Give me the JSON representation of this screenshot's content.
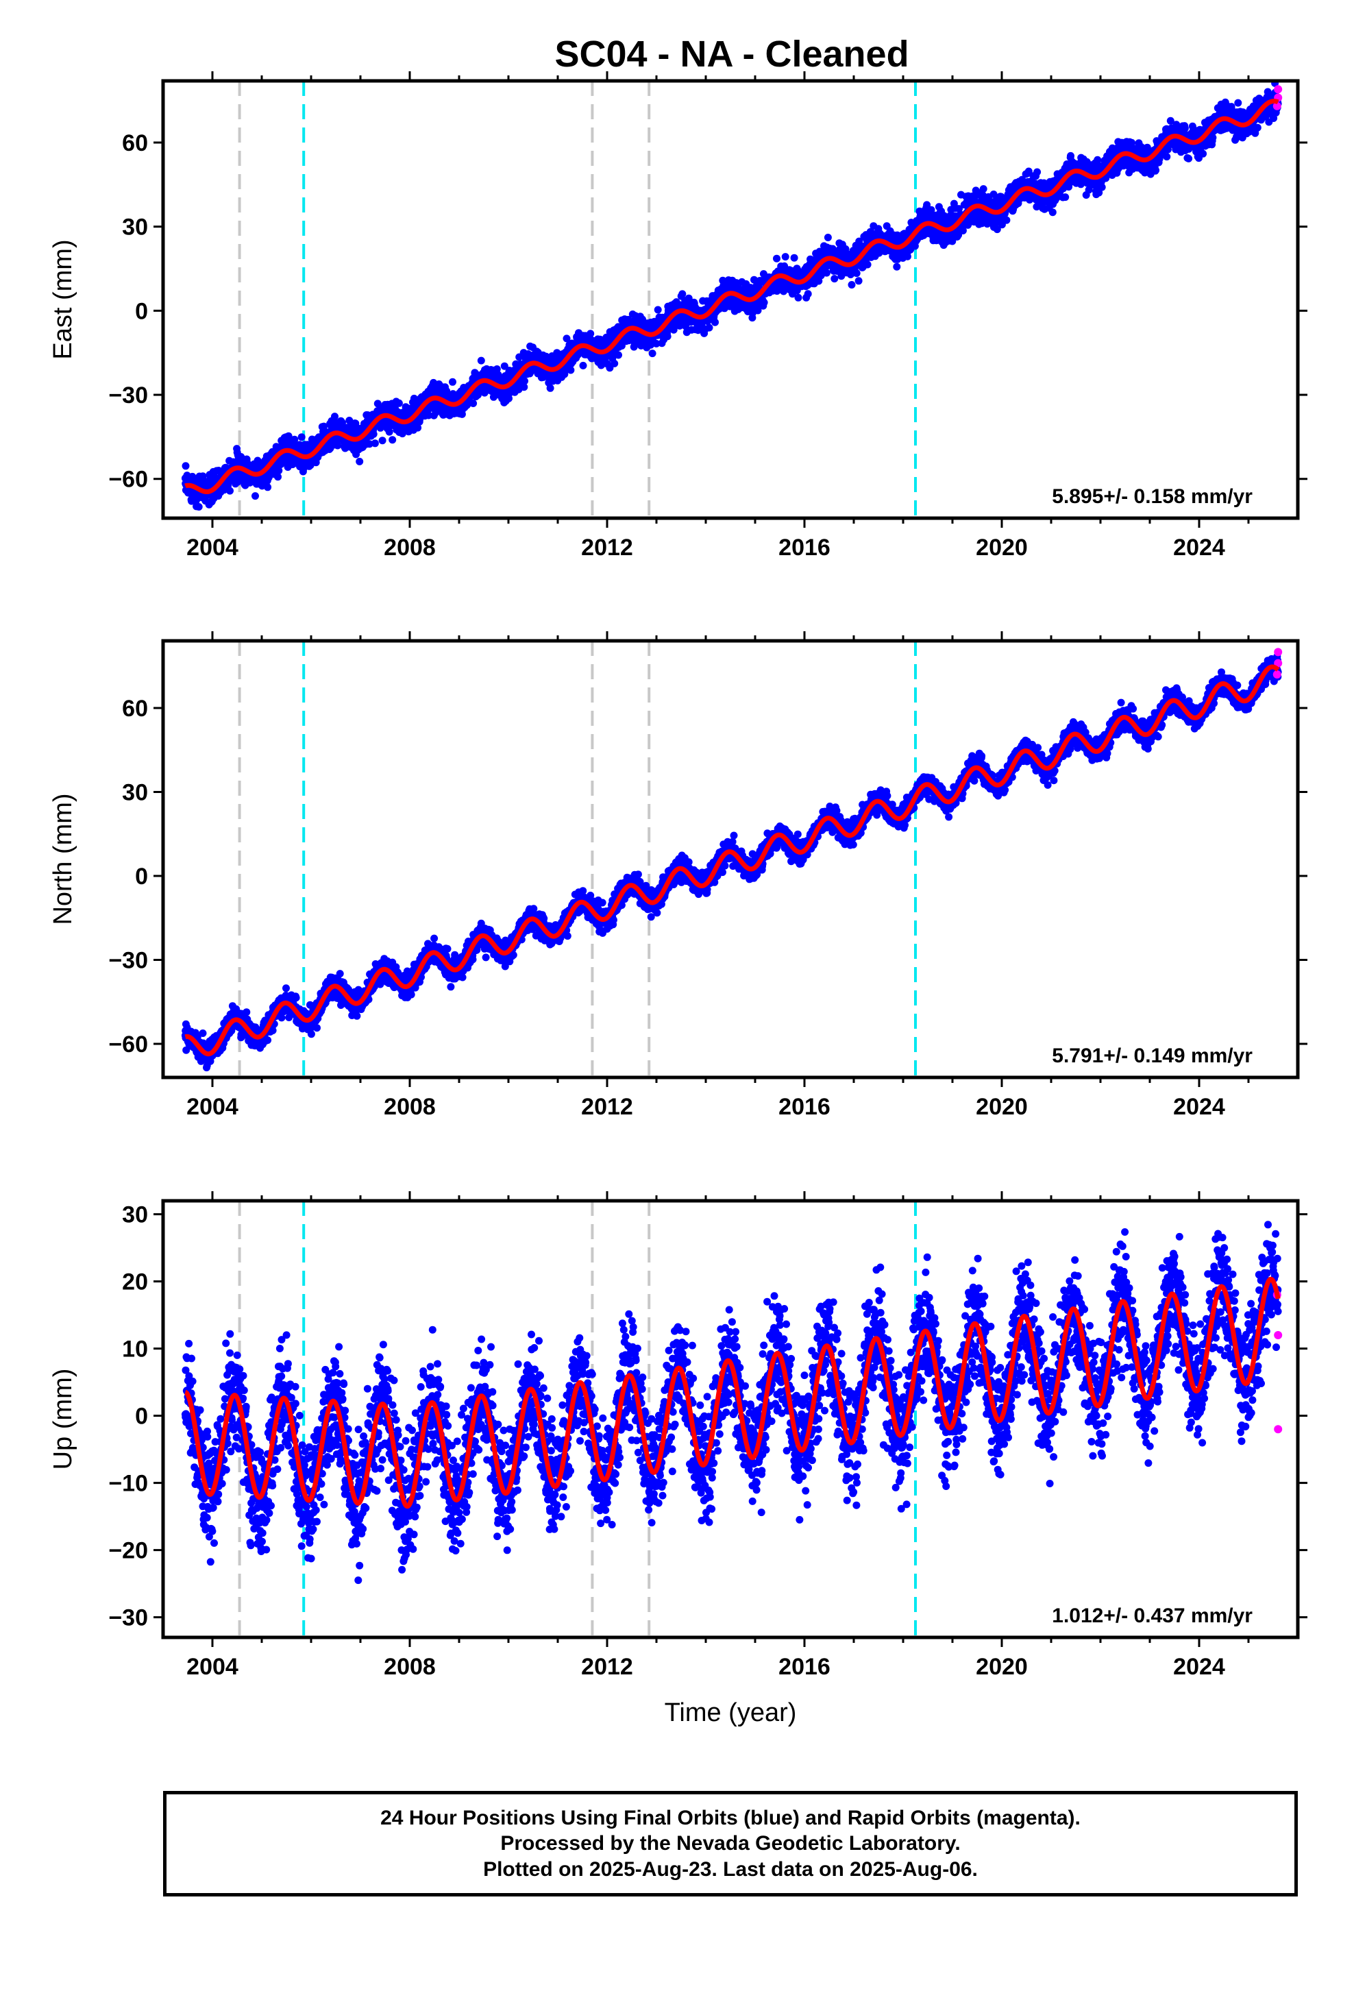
{
  "title": "SC04  - NA - Cleaned",
  "colors": {
    "final": "#0000ff",
    "rapid": "#ff00ff",
    "model": "#ff0000",
    "equipment_change": "#c8c8c8",
    "other_event": "#00e8f0"
  },
  "caption": {
    "line1": "24 Hour Positions Using Final Orbits (blue) and Rapid Orbits (magenta).",
    "line2": "Processed by the Nevada Geodetic Laboratory.",
    "line3": "Plotted on 2025-Aug-23. Last data on 2025-Aug-06."
  },
  "chart_data": [
    {
      "type": "scatter",
      "ylabel": "East (mm)",
      "xlabel": "",
      "xlim": [
        2003.0,
        2026.0
      ],
      "ylim": [
        -74,
        82
      ],
      "xticks": [
        2004,
        2008,
        2012,
        2016,
        2020,
        2024
      ],
      "yticks": [
        -60,
        -30,
        0,
        30,
        60
      ],
      "rate_label": "5.895+/- 0.158 mm/yr",
      "start_year": 2003.45,
      "end_year": 2025.6,
      "start_value": -65,
      "end_value": 73,
      "seasonal_amplitude": 2.5,
      "scatter_noise": 2.5,
      "event_lines": [
        {
          "year": 2004.55,
          "kind": "equipment_change"
        },
        {
          "year": 2005.85,
          "kind": "other_event"
        },
        {
          "year": 2011.7,
          "kind": "equipment_change"
        },
        {
          "year": 2012.85,
          "kind": "equipment_change"
        },
        {
          "year": 2018.25,
          "kind": "other_event"
        }
      ],
      "rapid_points": [
        [
          2025.58,
          73
        ],
        [
          2025.6,
          76
        ],
        [
          2025.6,
          79
        ]
      ]
    },
    {
      "type": "scatter",
      "ylabel": "North (mm)",
      "xlabel": "",
      "xlim": [
        2003.0,
        2026.0
      ],
      "ylim": [
        -72,
        84
      ],
      "xticks": [
        2004,
        2008,
        2012,
        2016,
        2020,
        2024
      ],
      "yticks": [
        -60,
        -30,
        0,
        30,
        60
      ],
      "rate_label": "5.791+/- 0.149 mm/yr",
      "start_year": 2003.45,
      "end_year": 2025.6,
      "start_value": -62,
      "end_value": 71,
      "seasonal_amplitude": 4.5,
      "scatter_noise": 2.0,
      "event_lines": [
        {
          "year": 2004.55,
          "kind": "equipment_change"
        },
        {
          "year": 2005.85,
          "kind": "other_event"
        },
        {
          "year": 2011.7,
          "kind": "equipment_change"
        },
        {
          "year": 2012.85,
          "kind": "equipment_change"
        },
        {
          "year": 2018.25,
          "kind": "other_event"
        }
      ],
      "rapid_points": [
        [
          2025.58,
          72
        ],
        [
          2025.6,
          76
        ],
        [
          2025.6,
          80
        ]
      ]
    },
    {
      "type": "scatter",
      "ylabel": "Up (mm)",
      "xlabel": "Time (year)",
      "xlim": [
        2003.0,
        2026.0
      ],
      "ylim": [
        -33,
        32
      ],
      "xticks": [
        2004,
        2008,
        2012,
        2016,
        2020,
        2024
      ],
      "yticks": [
        -30,
        -20,
        -10,
        0,
        10,
        20,
        30
      ],
      "rate_label": "1.012+/- 0.437 mm/yr",
      "start_year": 2003.45,
      "end_year": 2025.6,
      "start_value": -4,
      "end_value": 13,
      "trend_breaks": [
        [
          2003.45,
          -4
        ],
        [
          2008.0,
          -6
        ],
        [
          2012.0,
          -2
        ],
        [
          2025.6,
          13
        ]
      ],
      "seasonal_amplitude": 7.5,
      "scatter_noise": 4.0,
      "event_lines": [
        {
          "year": 2004.55,
          "kind": "equipment_change"
        },
        {
          "year": 2005.85,
          "kind": "other_event"
        },
        {
          "year": 2011.7,
          "kind": "equipment_change"
        },
        {
          "year": 2012.85,
          "kind": "equipment_change"
        },
        {
          "year": 2018.25,
          "kind": "other_event"
        }
      ],
      "rapid_points": [
        [
          2025.58,
          18
        ],
        [
          2025.6,
          12
        ],
        [
          2025.6,
          -2
        ]
      ]
    }
  ]
}
